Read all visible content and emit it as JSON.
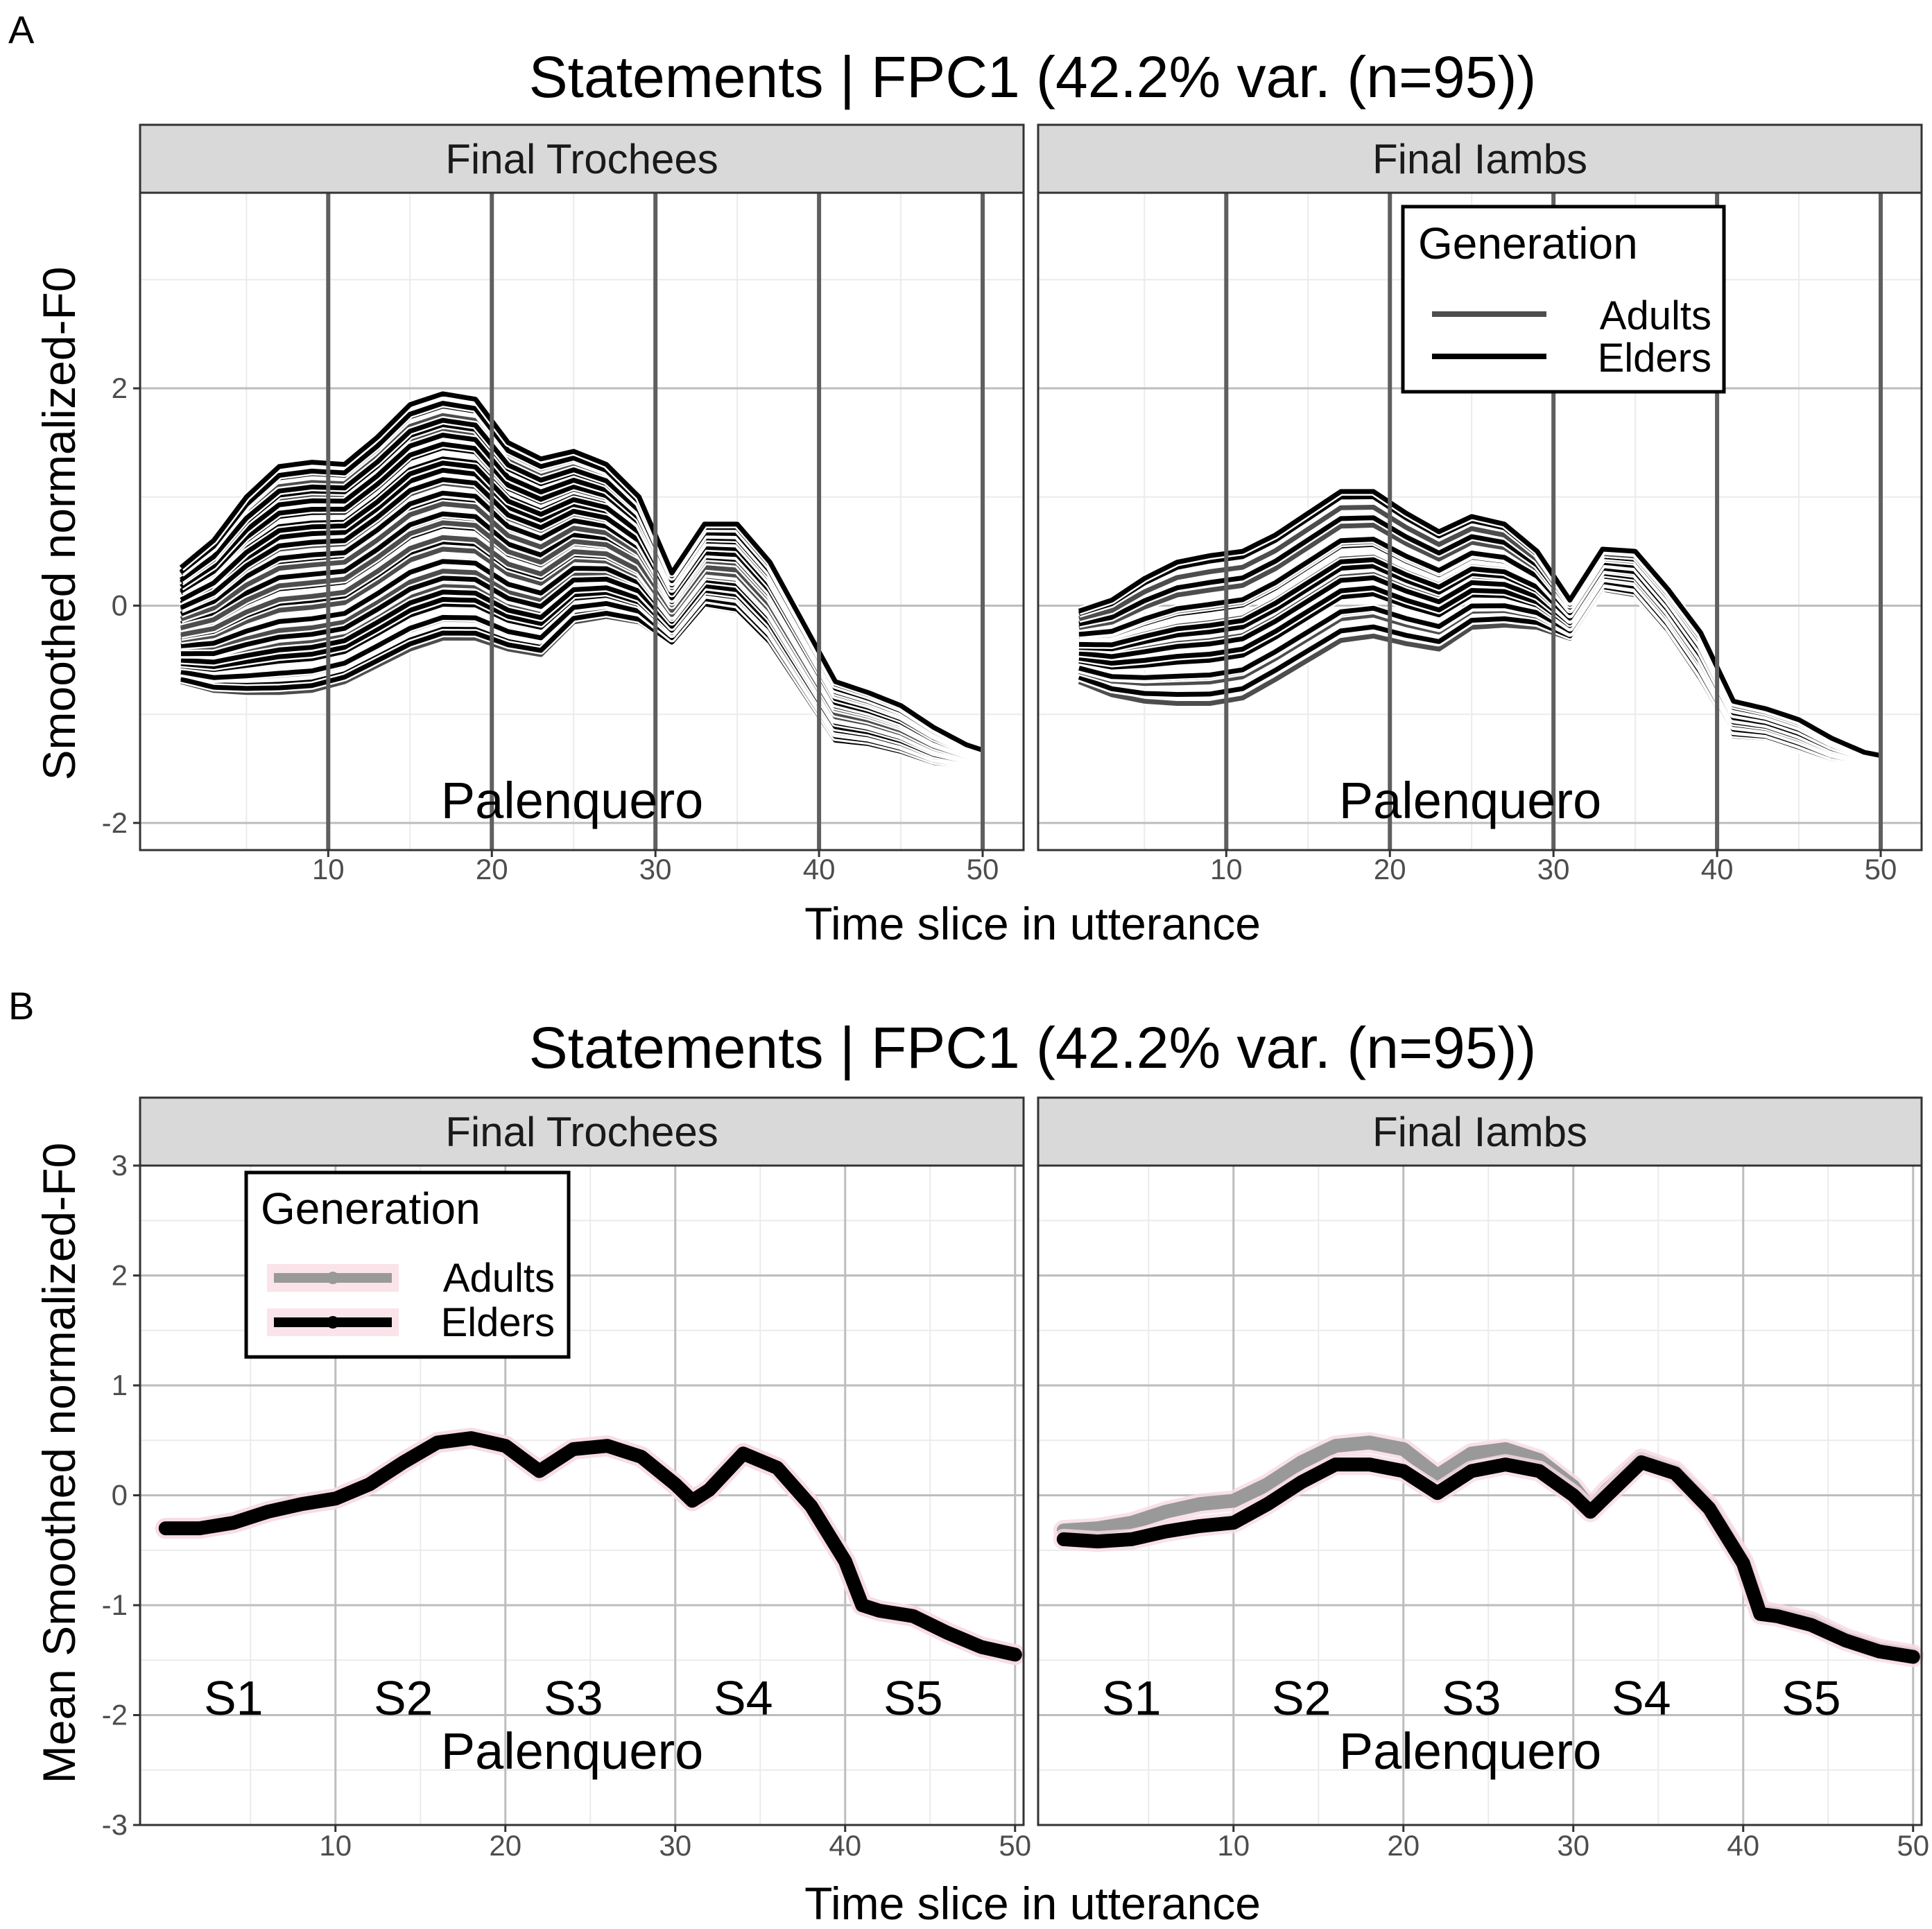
{
  "chart_data": [
    {
      "type": "line",
      "panel_label": "A",
      "title": "Statements | FPC1 (42.2% var. (n=95))",
      "xlabel": "Time slice in utterance",
      "ylabel": "Smoothed normalized-F0",
      "xlim": [
        -1.5,
        52.5
      ],
      "ylim": [
        -2.25,
        3.8
      ],
      "xticks": [
        10,
        20,
        30,
        40,
        50
      ],
      "yticks": [
        -2,
        0,
        2
      ],
      "grid": true,
      "legend": {
        "title": "Generation",
        "placement": "top-right of second facet",
        "entries": [
          "Adults",
          "Elders"
        ]
      },
      "colors": {
        "Adults": "#4d4d4d",
        "Elders": "#000000"
      },
      "syllable_boundaries": [
        10,
        20,
        30,
        40,
        50
      ],
      "facets": [
        {
          "name": "Final Trochees",
          "annotation": "Palenquero",
          "x": [
            1,
            3,
            5,
            7,
            9,
            11,
            13,
            15,
            17,
            19,
            21,
            23,
            25,
            27,
            29,
            31,
            33,
            35,
            37,
            39,
            41,
            43,
            45,
            47,
            49,
            50
          ],
          "mean": [
            -0.3,
            -0.29,
            -0.24,
            -0.15,
            -0.1,
            -0.05,
            0.1,
            0.3,
            0.48,
            0.5,
            0.3,
            0.25,
            0.45,
            0.42,
            0.25,
            -0.1,
            0.35,
            0.28,
            -0.05,
            -0.5,
            -1.0,
            -1.05,
            -1.15,
            -1.3,
            -1.4,
            -1.43
          ],
          "upper": [
            0.35,
            0.6,
            1.0,
            1.28,
            1.32,
            1.3,
            1.55,
            1.85,
            1.95,
            1.9,
            1.5,
            1.35,
            1.42,
            1.3,
            1.0,
            0.3,
            0.75,
            0.75,
            0.4,
            -0.15,
            -0.7,
            -0.8,
            -0.92,
            -1.12,
            -1.28,
            -1.33
          ],
          "lower": [
            -0.7,
            -0.78,
            -0.8,
            -0.8,
            -0.78,
            -0.7,
            -0.55,
            -0.4,
            -0.3,
            -0.3,
            -0.4,
            -0.45,
            -0.15,
            -0.1,
            -0.15,
            -0.35,
            0.0,
            -0.05,
            -0.35,
            -0.8,
            -1.25,
            -1.28,
            -1.35,
            -1.45,
            -1.48,
            -1.5
          ],
          "n_curves": 48
        },
        {
          "name": "Final Iambs",
          "annotation": "Palenquero",
          "x": [
            1,
            3,
            5,
            7,
            9,
            11,
            13,
            15,
            17,
            19,
            21,
            23,
            25,
            27,
            29,
            31,
            33,
            35,
            37,
            39,
            41,
            43,
            45,
            47,
            49,
            50
          ],
          "mean": [
            -0.35,
            -0.32,
            -0.26,
            -0.18,
            -0.12,
            -0.08,
            0.05,
            0.25,
            0.42,
            0.45,
            0.3,
            0.18,
            0.38,
            0.38,
            0.22,
            -0.1,
            0.3,
            0.28,
            -0.05,
            -0.5,
            -1.05,
            -1.1,
            -1.2,
            -1.35,
            -1.42,
            -1.45
          ],
          "upper": [
            -0.05,
            0.05,
            0.25,
            0.4,
            0.46,
            0.5,
            0.65,
            0.85,
            1.05,
            1.05,
            0.85,
            0.68,
            0.82,
            0.75,
            0.5,
            0.05,
            0.52,
            0.5,
            0.15,
            -0.25,
            -0.88,
            -0.95,
            -1.05,
            -1.22,
            -1.35,
            -1.38
          ],
          "lower": [
            -0.7,
            -0.82,
            -0.88,
            -0.9,
            -0.9,
            -0.85,
            -0.68,
            -0.5,
            -0.32,
            -0.28,
            -0.35,
            -0.4,
            -0.2,
            -0.18,
            -0.2,
            -0.3,
            0.15,
            0.1,
            -0.25,
            -0.7,
            -1.2,
            -1.22,
            -1.32,
            -1.42,
            -1.46,
            -1.5
          ],
          "n_curves": 24
        }
      ]
    },
    {
      "type": "line",
      "panel_label": "B",
      "title": "Statements | FPC1 (42.2% var. (n=95))",
      "xlabel": "Time slice in utterance",
      "ylabel": "Mean Smoothed normalized-F0",
      "xlim": [
        -1.5,
        50.5
      ],
      "ylim": [
        -3,
        3
      ],
      "xticks": [
        10,
        20,
        30,
        40,
        50
      ],
      "yticks": [
        -3,
        -2,
        -1,
        0,
        1,
        2,
        3
      ],
      "grid": true,
      "legend": {
        "title": "Generation",
        "placement": "top-left of first facet",
        "entries": [
          "Adults",
          "Elders"
        ]
      },
      "colors": {
        "Adults": "#999999",
        "Elders": "#000000"
      },
      "syllable_labels": [
        "S1",
        "S2",
        "S3",
        "S4",
        "S5"
      ],
      "syllable_centers": [
        4,
        14,
        24,
        34,
        44
      ],
      "facets": [
        {
          "name": "Final Trochees",
          "annotation": "Palenquero",
          "x": [
            0,
            2,
            4,
            6,
            8,
            10,
            12,
            14,
            16,
            18,
            20,
            22,
            24,
            26,
            28,
            30,
            31,
            32,
            34,
            36,
            38,
            40,
            41,
            42,
            44,
            46,
            48,
            50
          ],
          "series": [
            {
              "name": "Adults",
              "values": [
                -0.3,
                -0.3,
                -0.25,
                -0.15,
                -0.08,
                -0.03,
                0.1,
                0.3,
                0.48,
                0.52,
                0.45,
                0.22,
                0.42,
                0.45,
                0.35,
                0.1,
                -0.05,
                0.05,
                0.38,
                0.25,
                -0.1,
                -0.6,
                -1.0,
                -1.05,
                -1.1,
                -1.25,
                -1.38,
                -1.45
              ]
            },
            {
              "name": "Elders",
              "values": [
                -0.3,
                -0.3,
                -0.25,
                -0.15,
                -0.08,
                -0.03,
                0.1,
                0.3,
                0.48,
                0.52,
                0.45,
                0.22,
                0.42,
                0.45,
                0.35,
                0.1,
                -0.05,
                0.05,
                0.38,
                0.25,
                -0.1,
                -0.6,
                -1.0,
                -1.05,
                -1.1,
                -1.25,
                -1.38,
                -1.45
              ]
            }
          ]
        },
        {
          "name": "Final Iambs",
          "annotation": "Palenquero",
          "x": [
            0,
            2,
            4,
            6,
            8,
            10,
            12,
            14,
            16,
            18,
            20,
            22,
            24,
            26,
            28,
            30,
            31,
            32,
            34,
            36,
            38,
            40,
            41,
            42,
            44,
            46,
            48,
            50
          ],
          "series": [
            {
              "name": "Adults",
              "values": [
                -0.32,
                -0.3,
                -0.25,
                -0.15,
                -0.08,
                -0.05,
                0.1,
                0.3,
                0.45,
                0.48,
                0.42,
                0.18,
                0.38,
                0.42,
                0.32,
                0.08,
                -0.12,
                0.05,
                0.33,
                0.22,
                -0.1,
                -0.6,
                -1.05,
                -1.08,
                -1.15,
                -1.3,
                -1.4,
                -1.45
              ]
            },
            {
              "name": "Elders",
              "values": [
                -0.4,
                -0.42,
                -0.4,
                -0.33,
                -0.28,
                -0.25,
                -0.08,
                0.12,
                0.28,
                0.28,
                0.22,
                0.02,
                0.22,
                0.28,
                0.22,
                0.0,
                -0.15,
                0.0,
                0.3,
                0.2,
                -0.12,
                -0.62,
                -1.08,
                -1.1,
                -1.18,
                -1.32,
                -1.42,
                -1.47
              ]
            }
          ]
        }
      ]
    }
  ]
}
